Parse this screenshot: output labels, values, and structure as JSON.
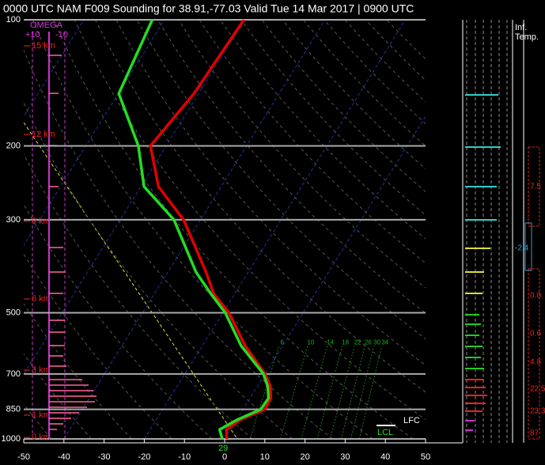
{
  "chart_data": {
    "type": "skewt",
    "title": "0000 UTC NAM F009 Sounding for 38.91,-77.03 Valid  Tue 14 Mar 2017 | 0900 UTC",
    "ylim": [
      1000,
      100
    ],
    "ylog": true,
    "yticks": [
      100,
      200,
      300,
      500,
      700,
      850,
      1000
    ],
    "xlim": [
      -50,
      50
    ],
    "xticks": [
      -50,
      -40,
      -30,
      -20,
      -10,
      0,
      10,
      20,
      30,
      40,
      50
    ],
    "grid": true,
    "pressure": [
      1000,
      950,
      900,
      850,
      800,
      750,
      700,
      600,
      500,
      450,
      400,
      300,
      250,
      200,
      150,
      100
    ],
    "series": [
      {
        "color": "#e00000",
        "values": [
          0.5,
          -1.0,
          1.0,
          5.4,
          5.2,
          3.3,
          0.0,
          -9.3,
          -18.5,
          -25.3,
          -30.5,
          -44.2,
          -55.6,
          -63.9,
          -61.2,
          -60.2
        ]
      },
      {
        "color": "#22dd22",
        "values": [
          -0.6,
          -2.7,
          0.2,
          4.4,
          4.6,
          2.6,
          -0.4,
          -10.3,
          -19.4,
          -26.0,
          -33.0,
          -46.6,
          -59.2,
          -66.9,
          -79.9,
          -83.0
        ]
      }
    ],
    "mixing_ratio": [
      6,
      10,
      14,
      18,
      22,
      26,
      30,
      34
    ],
    "omega_label": "OMEGA",
    "omega_ticks": [
      "+10",
      "-10"
    ],
    "height_labels": [
      "15 km",
      "12 km",
      "9 km",
      "6 km",
      "3 km",
      "1 km",
      "0 km"
    ],
    "annotations": [
      "LFC",
      "LCL",
      "29"
    ],
    "inf_temp": {
      "title": [
        "Inf.",
        "Temp."
      ],
      "values": [
        "7.5",
        "-2.4",
        "0.0",
        "0.6",
        "4.8",
        "22.5",
        "23.3",
        "87"
      ]
    }
  }
}
